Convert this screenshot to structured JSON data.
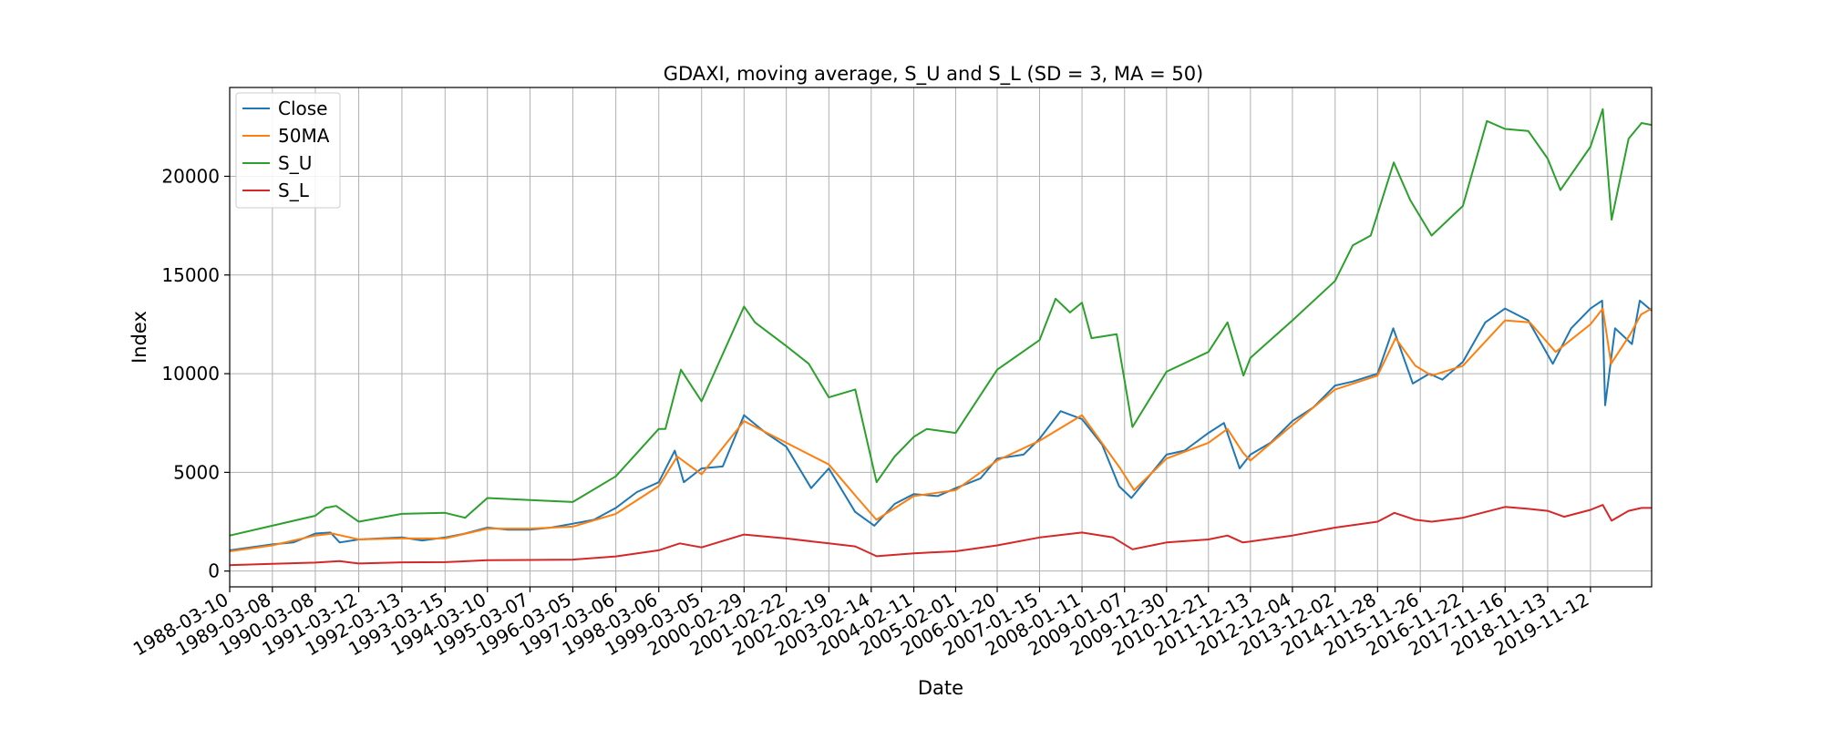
{
  "chart_data": {
    "type": "line",
    "title": "GDAXI, moving average, S_U and S_L (SD = 3, MA = 50)",
    "xlabel": "Date",
    "ylabel": "Index",
    "x_range": [
      "1988-03-10",
      "2021-04-15"
    ],
    "ylim": [
      -800,
      24500
    ],
    "y_ticks": [
      0,
      5000,
      10000,
      15000,
      20000
    ],
    "x_ticks": [
      "1988-03-10",
      "1989-03-08",
      "1990-03-08",
      "1991-03-12",
      "1992-03-13",
      "1993-03-15",
      "1994-03-10",
      "1995-03-07",
      "1996-03-05",
      "1997-03-06",
      "1998-03-06",
      "1999-03-05",
      "2000-02-29",
      "2001-02-22",
      "2002-02-19",
      "2003-02-14",
      "2004-02-11",
      "2005-02-01",
      "2006-01-20",
      "2007-01-15",
      "2008-01-11",
      "2009-01-07",
      "2009-12-30",
      "2010-12-21",
      "2011-12-13",
      "2012-12-04",
      "2013-12-02",
      "2014-11-28",
      "2015-11-26",
      "2016-11-22",
      "2017-11-16",
      "2018-11-13",
      "2019-11-12"
    ],
    "grid": true,
    "legend_position": "top-left",
    "series": [
      {
        "name": "Close",
        "color": "#1f77b4",
        "x": [
          "1988-03-10",
          "1988-09-01",
          "1989-03-08",
          "1989-09-01",
          "1990-03-08",
          "1990-07-15",
          "1990-10-01",
          "1991-03-12",
          "1991-09-01",
          "1992-03-13",
          "1992-09-01",
          "1993-03-15",
          "1993-09-01",
          "1994-03-10",
          "1994-09-01",
          "1995-03-07",
          "1995-09-01",
          "1996-03-05",
          "1996-09-01",
          "1997-03-06",
          "1997-09-01",
          "1998-03-06",
          "1998-07-20",
          "1998-10-05",
          "1999-03-05",
          "1999-09-01",
          "2000-02-29",
          "2000-09-01",
          "2001-02-22",
          "2001-09-21",
          "2002-02-19",
          "2002-09-30",
          "2003-03-12",
          "2003-09-01",
          "2004-02-11",
          "2004-09-01",
          "2005-02-01",
          "2005-09-01",
          "2006-01-20",
          "2006-09-01",
          "2007-01-15",
          "2007-07-13",
          "2008-01-11",
          "2008-07-01",
          "2008-11-21",
          "2009-03-06",
          "2009-12-30",
          "2010-06-01",
          "2010-12-21",
          "2011-05-02",
          "2011-09-12",
          "2011-12-13",
          "2012-06-01",
          "2012-12-04",
          "2013-06-01",
          "2013-12-02",
          "2014-05-01",
          "2014-11-28",
          "2015-04-10",
          "2015-09-24",
          "2016-02-11",
          "2016-06-01",
          "2016-11-22",
          "2017-06-01",
          "2017-11-16",
          "2018-06-01",
          "2018-12-27",
          "2019-06-01",
          "2019-11-12",
          "2020-02-19",
          "2020-03-16",
          "2020-06-08",
          "2020-10-30",
          "2021-01-04",
          "2021-04-15"
        ],
        "values": [
          1050,
          1200,
          1350,
          1450,
          1900,
          1950,
          1450,
          1600,
          1650,
          1700,
          1550,
          1700,
          1900,
          2200,
          2100,
          2100,
          2200,
          2400,
          2600,
          3200,
          4000,
          4500,
          6100,
          4500,
          5200,
          5300,
          7900,
          7000,
          6300,
          4200,
          5200,
          3000,
          2300,
          3400,
          3900,
          3800,
          4200,
          4700,
          5700,
          5900,
          6700,
          8100,
          7700,
          6400,
          4300,
          3700,
          5900,
          6100,
          7000,
          7500,
          5200,
          5900,
          6500,
          7600,
          8300,
          9400,
          9600,
          10000,
          12300,
          9500,
          10000,
          9700,
          10600,
          12600,
          13300,
          12700,
          10500,
          12300,
          13300,
          13700,
          8400,
          12300,
          11500,
          13700,
          13200
        ]
      },
      {
        "name": "50MA",
        "color": "#ff7f0e",
        "x": [
          "1988-03-10",
          "1989-03-08",
          "1990-03-08",
          "1990-08-01",
          "1991-03-12",
          "1992-03-13",
          "1993-03-15",
          "1994-03-10",
          "1995-03-07",
          "1996-03-05",
          "1997-03-06",
          "1998-03-06",
          "1998-08-10",
          "1999-03-05",
          "2000-02-29",
          "2001-02-22",
          "2002-02-19",
          "2002-10-20",
          "2003-03-30",
          "2004-02-11",
          "2005-02-01",
          "2006-01-20",
          "2007-01-15",
          "2008-01-11",
          "2008-12-01",
          "2009-03-30",
          "2009-12-30",
          "2010-12-21",
          "2011-06-01",
          "2011-10-10",
          "2011-12-13",
          "2012-12-04",
          "2013-12-02",
          "2014-11-28",
          "2015-04-30",
          "2015-10-15",
          "2016-03-01",
          "2016-11-22",
          "2017-11-16",
          "2018-06-15",
          "2019-01-20",
          "2019-11-12",
          "2020-02-25",
          "2020-05-05",
          "2020-10-15",
          "2021-01-15",
          "2021-04-15"
        ],
        "values": [
          1000,
          1300,
          1800,
          1900,
          1600,
          1650,
          1650,
          2150,
          2150,
          2250,
          2900,
          4300,
          5800,
          4900,
          7600,
          6500,
          5400,
          3700,
          2600,
          3800,
          4100,
          5600,
          6600,
          7900,
          5200,
          4100,
          5700,
          6500,
          7200,
          6000,
          5600,
          7400,
          9200,
          9900,
          11800,
          10400,
          9900,
          10400,
          12700,
          12600,
          11100,
          12500,
          13300,
          10500,
          12000,
          13000,
          13300
        ]
      },
      {
        "name": "S_U",
        "color": "#2ca02c",
        "x": [
          "1988-03-10",
          "1989-03-08",
          "1990-03-08",
          "1990-06-01",
          "1990-09-01",
          "1991-03-12",
          "1992-03-13",
          "1993-03-15",
          "1993-09-01",
          "1994-03-10",
          "1995-03-07",
          "1996-03-05",
          "1997-03-06",
          "1998-03-06",
          "1998-05-01",
          "1998-09-10",
          "1999-03-05",
          "2000-02-29",
          "2000-06-01",
          "2001-02-22",
          "2001-09-01",
          "2002-02-19",
          "2002-10-01",
          "2003-04-01",
          "2003-09-01",
          "2004-02-11",
          "2004-06-01",
          "2005-02-01",
          "2006-01-20",
          "2007-01-15",
          "2007-06-01",
          "2007-10-01",
          "2008-01-11",
          "2008-04-01",
          "2008-11-01",
          "2009-03-15",
          "2009-12-30",
          "2010-12-21",
          "2011-06-01",
          "2011-10-15",
          "2011-12-13",
          "2012-12-04",
          "2013-12-02",
          "2014-05-01",
          "2014-10-01",
          "2015-04-15",
          "2015-09-01",
          "2016-03-01",
          "2016-11-22",
          "2017-06-15",
          "2017-11-16",
          "2018-06-01",
          "2018-11-13",
          "2019-03-01",
          "2019-11-12",
          "2020-02-25",
          "2020-05-10",
          "2020-10-01",
          "2021-01-20",
          "2021-04-15"
        ],
        "values": [
          1800,
          2300,
          2800,
          3200,
          3300,
          2500,
          2900,
          2950,
          2700,
          3700,
          3600,
          3500,
          4800,
          7200,
          7200,
          10200,
          8600,
          13400,
          12600,
          11400,
          10500,
          8800,
          9200,
          4500,
          5800,
          6800,
          7200,
          7000,
          10200,
          11700,
          13800,
          13100,
          13600,
          11800,
          12000,
          7300,
          10100,
          11100,
          12600,
          9900,
          10800,
          12700,
          14700,
          16500,
          17000,
          20700,
          18800,
          17000,
          18500,
          22800,
          22400,
          22300,
          20900,
          19300,
          21500,
          23400,
          17800,
          21900,
          22700,
          22600
        ]
      },
      {
        "name": "S_L",
        "color": "#d62728",
        "x": [
          "1988-03-10",
          "1989-03-08",
          "1990-03-08",
          "1990-10-01",
          "1991-03-12",
          "1992-03-13",
          "1993-03-15",
          "1994-03-10",
          "1995-03-07",
          "1996-03-05",
          "1997-03-06",
          "1998-03-06",
          "1998-09-01",
          "1999-03-05",
          "2000-02-29",
          "2001-02-22",
          "2002-02-19",
          "2002-10-01",
          "2003-04-01",
          "2004-02-11",
          "2005-02-01",
          "2006-01-20",
          "2007-01-15",
          "2008-01-11",
          "2008-10-01",
          "2009-03-15",
          "2009-12-30",
          "2010-12-21",
          "2011-06-01",
          "2011-10-10",
          "2011-12-13",
          "2012-12-04",
          "2013-12-02",
          "2014-11-28",
          "2015-04-20",
          "2015-10-15",
          "2016-03-01",
          "2016-11-22",
          "2017-11-16",
          "2018-06-01",
          "2018-11-13",
          "2019-04-01",
          "2019-11-12",
          "2020-02-25",
          "2020-05-10",
          "2020-10-01",
          "2021-01-20",
          "2021-04-15"
        ],
        "values": [
          300,
          370,
          430,
          500,
          380,
          440,
          450,
          550,
          560,
          580,
          740,
          1050,
          1400,
          1200,
          1850,
          1650,
          1400,
          1250,
          750,
          900,
          1000,
          1300,
          1700,
          1950,
          1700,
          1100,
          1450,
          1600,
          1800,
          1450,
          1500,
          1800,
          2200,
          2500,
          2950,
          2600,
          2500,
          2700,
          3250,
          3150,
          3050,
          2750,
          3100,
          3350,
          2550,
          3050,
          3200,
          3200
        ]
      }
    ]
  }
}
